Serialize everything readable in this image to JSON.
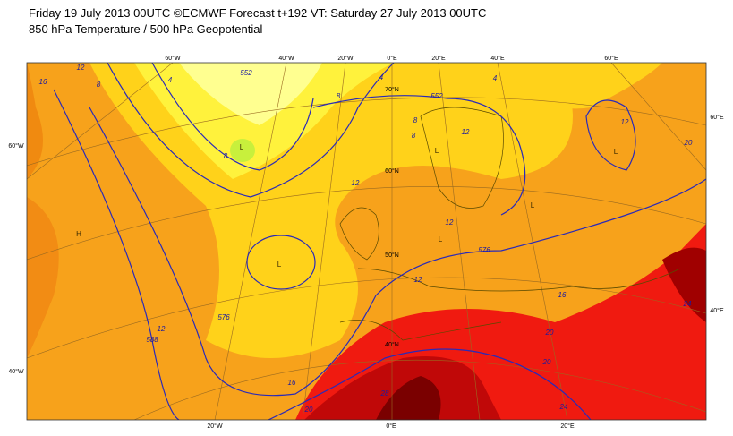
{
  "header": {
    "line1": "Friday 19 July 2013 00UTC ©ECMWF Forecast t+192 VT: Saturday 27 July 2013 00UTC",
    "line2": "850 hPa Temperature / 500 hPa Geopotential"
  },
  "graticule_labels": {
    "top": [
      "60°W",
      "40°W",
      "20°W",
      "0°E",
      "20°E",
      "40°E",
      "60°E"
    ],
    "bottom": [
      "20°W",
      "0°E",
      "20°E"
    ],
    "left": [
      "60°W",
      "40°W"
    ],
    "right": [
      "60°E",
      "40°E"
    ],
    "latitude": [
      "70°N",
      "60°N",
      "50°N",
      "40°N"
    ]
  },
  "contour_labels": [
    "16",
    "12",
    "8",
    "4",
    "552",
    "8",
    "4",
    "552",
    "4",
    "8",
    "8",
    "12",
    "12",
    "12",
    "576",
    "12",
    "16",
    "20",
    "24",
    "20",
    "12",
    "576",
    "12",
    "588",
    "16",
    "20",
    "28",
    "24",
    "20",
    "8"
  ],
  "pressure_centers": [
    "L",
    "L",
    "L",
    "L",
    "L",
    "L",
    "H"
  ]
}
